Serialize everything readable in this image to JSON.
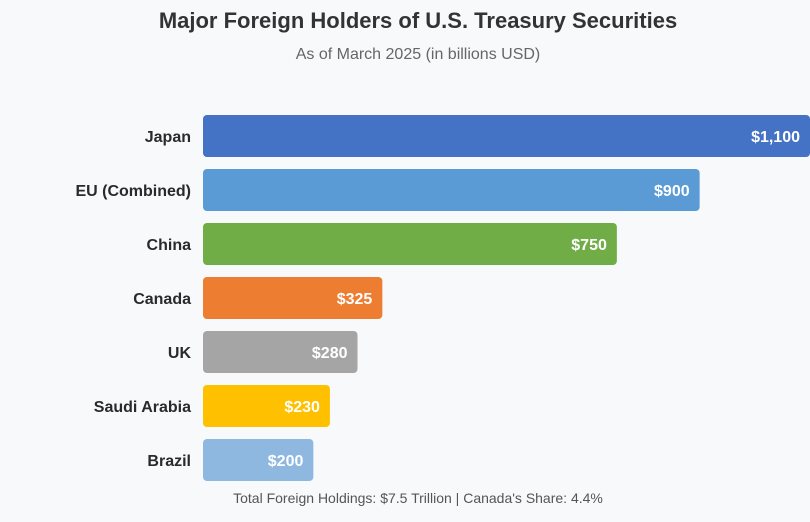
{
  "header": {
    "title": "Major Foreign Holders of U.S. Treasury Securities",
    "subtitle": "As of March 2025 (in billions USD)"
  },
  "footer": {
    "note": "Total Foreign Holdings: $7.5 Trillion | Canada's Share: 4.4%"
  },
  "chart_data": {
    "type": "bar",
    "orientation": "horizontal",
    "title": "Major Foreign Holders of U.S. Treasury Securities",
    "subtitle": "As of March 2025 (in billions USD)",
    "categories": [
      "Japan",
      "EU (Combined)",
      "China",
      "Canada",
      "UK",
      "Saudi Arabia",
      "Brazil"
    ],
    "values": [
      1100,
      900,
      750,
      325,
      280,
      230,
      200
    ],
    "value_labels": [
      "$1,100",
      "$900",
      "$750",
      "$325",
      "$280",
      "$230",
      "$200"
    ],
    "colors": [
      "#4472c4",
      "#5b9bd5",
      "#70ad47",
      "#ed7d31",
      "#a5a5a5",
      "#ffc000",
      "#8fb8e0"
    ],
    "xlim": [
      0,
      1100
    ],
    "grid": false,
    "legend": "none",
    "xlabel": "",
    "ylabel": ""
  }
}
